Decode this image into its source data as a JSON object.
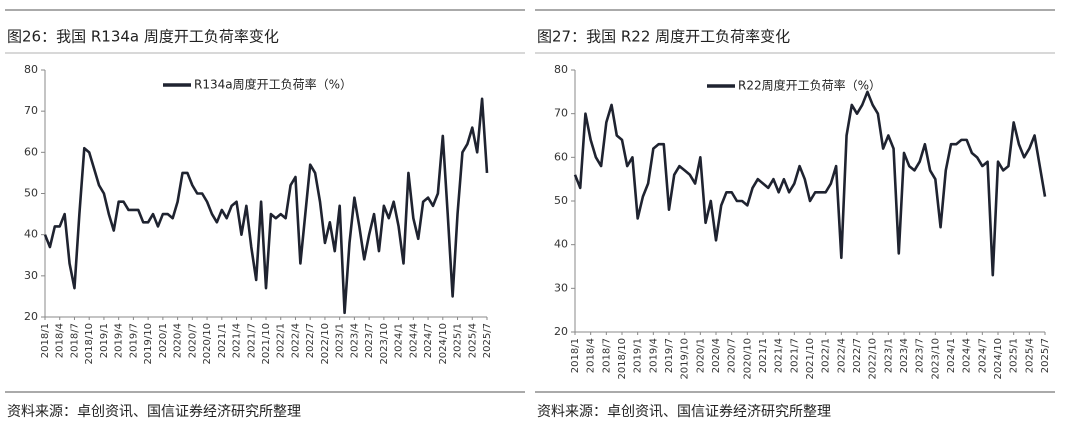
{
  "chart_data": [
    {
      "type": "line",
      "title": "图26：我国 R134a 周度开工负荷率变化",
      "source": "资料来源：卓创资讯、国信证券经济研究所整理",
      "categories": [
        "2018/1",
        null,
        null,
        "2018/4",
        null,
        null,
        "2018/7",
        null,
        null,
        "2018/10",
        null,
        null,
        "2019/1",
        null,
        null,
        "2019/4",
        null,
        null,
        "2019/7",
        null,
        null,
        "2019/10",
        null,
        null,
        "2020/1",
        null,
        null,
        "2020/4",
        null,
        null,
        "2020/7",
        null,
        null,
        "2020/10",
        null,
        null,
        "2021/1",
        null,
        null,
        "2021/4",
        null,
        null,
        "2021/7",
        null,
        null,
        "2021/10",
        null,
        null,
        "2022/1",
        null,
        null,
        "2022/4",
        null,
        null,
        "2022/7",
        null,
        null,
        "2022/10",
        null,
        null,
        "2023/1",
        null,
        null,
        "2023/4",
        null,
        null,
        "2023/7",
        null,
        null,
        "2023/10",
        null,
        null,
        "2024/1",
        null,
        null,
        "2024/4",
        null,
        null,
        "2024/7",
        null,
        null,
        "2024/10",
        null,
        null,
        "2025/1",
        null,
        null,
        "2025/4",
        null,
        null,
        "2025/7"
      ],
      "series": [
        {
          "name": "R134a周度开工负荷率（%）",
          "color": "#1f2330",
          "values": [
            40,
            37,
            42,
            42,
            45,
            33,
            27,
            45,
            61,
            60,
            56,
            52,
            50,
            45,
            41,
            48,
            48,
            46,
            46,
            46,
            43,
            43,
            45,
            42,
            45,
            45,
            44,
            48,
            55,
            55,
            52,
            50,
            50,
            48,
            45,
            43,
            46,
            44,
            47,
            48,
            40,
            47,
            37,
            29,
            48,
            27,
            45,
            44,
            45,
            44,
            52,
            54,
            33,
            45,
            57,
            55,
            48,
            38,
            43,
            36,
            47,
            21,
            38,
            49,
            42,
            34,
            40,
            45,
            36,
            47,
            44,
            48,
            42,
            33,
            55,
            44,
            39,
            48,
            49,
            47,
            50,
            64,
            45,
            25,
            45,
            60,
            62,
            66,
            60,
            73,
            55
          ]
        }
      ],
      "ylim": [
        20,
        80
      ],
      "yticks": [
        20,
        30,
        40,
        50,
        60,
        70,
        80
      ]
    },
    {
      "type": "line",
      "title": "图27：我国 R22 周度开工负荷率变化",
      "source": "资料来源：卓创资讯、国信证券经济研究所整理",
      "categories": [
        "2018/1",
        null,
        null,
        "2018/4",
        null,
        null,
        "2018/7",
        null,
        null,
        "2018/10",
        null,
        null,
        "2019/1",
        null,
        null,
        "2019/4",
        null,
        null,
        "2019/7",
        null,
        null,
        "2019/10",
        null,
        null,
        "2020/1",
        null,
        null,
        "2020/4",
        null,
        null,
        "2020/7",
        null,
        null,
        "2020/10",
        null,
        null,
        "2021/1",
        null,
        null,
        "2021/4",
        null,
        null,
        "2021/7",
        null,
        null,
        "2021/10",
        null,
        null,
        "2022/1",
        null,
        null,
        "2022/4",
        null,
        null,
        "2022/7",
        null,
        null,
        "2022/10",
        null,
        null,
        "2023/1",
        null,
        null,
        "2023/4",
        null,
        null,
        "2023/7",
        null,
        null,
        "2023/10",
        null,
        null,
        "2024/1",
        null,
        null,
        "2024/4",
        null,
        null,
        "2024/7",
        null,
        null,
        "2024/10",
        null,
        null,
        "2025/1",
        null,
        null,
        "2025/4",
        null,
        null,
        "2025/7"
      ],
      "series": [
        {
          "name": "R22周度开工负荷率（%）",
          "color": "#1f2330",
          "values": [
            56,
            53,
            70,
            64,
            60,
            58,
            68,
            72,
            65,
            64,
            58,
            60,
            46,
            51,
            54,
            62,
            63,
            63,
            48,
            56,
            58,
            57,
            56,
            54,
            60,
            45,
            50,
            41,
            49,
            52,
            52,
            50,
            50,
            49,
            53,
            55,
            54,
            53,
            55,
            52,
            55,
            52,
            54,
            58,
            55,
            50,
            52,
            52,
            52,
            54,
            58,
            37,
            65,
            72,
            70,
            72,
            75,
            72,
            70,
            62,
            65,
            62,
            38,
            61,
            58,
            57,
            59,
            63,
            57,
            55,
            44,
            57,
            63,
            63,
            64,
            64,
            61,
            60,
            58,
            59,
            33,
            59,
            57,
            58,
            68,
            63,
            60,
            62,
            65,
            58,
            51
          ]
        }
      ],
      "ylim": [
        20,
        80
      ],
      "yticks": [
        20,
        30,
        40,
        50,
        60,
        70,
        80
      ]
    }
  ]
}
